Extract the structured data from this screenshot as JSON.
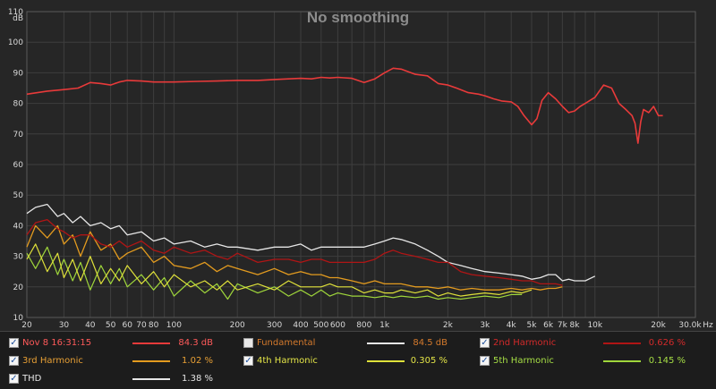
{
  "chart_data": {
    "type": "line",
    "title": "No smoothing",
    "y_unit": "dB",
    "x_unit": "Hz",
    "xscale": "log",
    "xlim": [
      20,
      30000
    ],
    "ylim": [
      10,
      110
    ],
    "grid": true,
    "x_ticks": [
      {
        "v": 20,
        "label": "20"
      },
      {
        "v": 30,
        "label": "30"
      },
      {
        "v": 40,
        "label": "40"
      },
      {
        "v": 50,
        "label": "50"
      },
      {
        "v": 60,
        "label": "60"
      },
      {
        "v": 70,
        "label": "70"
      },
      {
        "v": 80,
        "label": "80"
      },
      {
        "v": 100,
        "label": "100"
      },
      {
        "v": 200,
        "label": "200"
      },
      {
        "v": 300,
        "label": "300"
      },
      {
        "v": 400,
        "label": "400"
      },
      {
        "v": 500,
        "label": "500"
      },
      {
        "v": 600,
        "label": "600"
      },
      {
        "v": 800,
        "label": "800"
      },
      {
        "v": 1000,
        "label": "1k"
      },
      {
        "v": 2000,
        "label": "2k"
      },
      {
        "v": 3000,
        "label": "3k"
      },
      {
        "v": 4000,
        "label": "4k"
      },
      {
        "v": 5000,
        "label": "5k"
      },
      {
        "v": 6000,
        "label": "6k"
      },
      {
        "v": 7000,
        "label": "7k"
      },
      {
        "v": 8000,
        "label": "8k"
      },
      {
        "v": 10000,
        "label": "10k"
      },
      {
        "v": 20000,
        "label": "20k"
      },
      {
        "v": 30000,
        "label": "30.0k"
      }
    ],
    "x_minor": [
      90,
      700,
      900,
      9000
    ],
    "y_ticks": [
      10,
      20,
      30,
      40,
      50,
      60,
      70,
      80,
      90,
      100,
      110
    ],
    "series": [
      {
        "name": "Nov 8 16:31:15",
        "color": "#e83a3a",
        "width": 1.6,
        "x": [
          20,
          25,
          30,
          35,
          40,
          45,
          50,
          55,
          60,
          70,
          80,
          100,
          130,
          160,
          200,
          250,
          300,
          350,
          400,
          450,
          500,
          550,
          600,
          700,
          800,
          900,
          1000,
          1100,
          1200,
          1400,
          1600,
          1800,
          2000,
          2200,
          2500,
          2800,
          3000,
          3300,
          3600,
          4000,
          4300,
          4600,
          5000,
          5300,
          5600,
          6000,
          6500,
          7000,
          7500,
          8000,
          8500,
          9000,
          10000,
          11000,
          12000,
          13000,
          14000,
          15000,
          15500,
          16000,
          16500,
          17000,
          18000,
          19000,
          20000,
          21000
        ],
        "y": [
          83,
          84,
          84.5,
          85,
          86.8,
          86.5,
          86,
          87,
          87.5,
          87.3,
          87,
          87,
          87.2,
          87.3,
          87.5,
          87.5,
          87.8,
          88,
          88.2,
          88,
          88.5,
          88.3,
          88.5,
          88.2,
          86.8,
          88,
          90,
          91.5,
          91.2,
          89.5,
          89,
          86.5,
          86,
          85,
          83.5,
          83,
          82.5,
          81.5,
          80.8,
          80.5,
          79,
          76,
          73,
          75,
          81,
          83.5,
          81.5,
          79,
          77,
          77.5,
          79,
          80,
          82,
          86,
          85,
          80,
          78,
          76,
          73.5,
          67,
          74,
          78,
          77,
          79,
          76,
          76
        ]
      },
      {
        "name": "2nd Harmonic",
        "color": "#b01515",
        "width": 1.3,
        "x": [
          20,
          22,
          25,
          28,
          30,
          33,
          36,
          40,
          45,
          50,
          55,
          60,
          70,
          80,
          90,
          100,
          120,
          140,
          160,
          180,
          200,
          250,
          300,
          350,
          400,
          450,
          500,
          550,
          600,
          700,
          800,
          900,
          1000,
          1100,
          1200,
          1400,
          1600,
          1800,
          2000,
          2300,
          2600,
          3000,
          3500,
          4000,
          4500,
          5000,
          5500,
          6000,
          6500,
          7000
        ],
        "y": [
          37,
          41,
          42,
          39,
          38,
          36,
          37,
          37,
          34,
          33,
          35,
          33,
          35,
          32,
          31,
          33,
          31,
          32,
          30,
          29,
          31,
          28,
          29,
          29,
          28,
          29,
          29,
          28,
          28,
          28,
          28,
          29,
          31,
          32,
          31,
          30,
          29,
          28,
          28,
          25,
          24,
          23.5,
          23,
          22.5,
          22,
          22,
          21,
          21,
          21,
          20.5
        ]
      },
      {
        "name": "3rd Harmonic",
        "color": "#e39b1f",
        "width": 1.3,
        "x": [
          20,
          22,
          25,
          28,
          30,
          33,
          36,
          40,
          45,
          50,
          55,
          60,
          70,
          80,
          90,
          100,
          120,
          140,
          160,
          180,
          200,
          250,
          300,
          350,
          400,
          450,
          500,
          550,
          600,
          700,
          800,
          900,
          1000,
          1100,
          1200,
          1400,
          1600,
          1800,
          2000,
          2300,
          2600,
          3000,
          3500,
          4000,
          4500,
          5000,
          5500,
          6000,
          6500,
          7000
        ],
        "y": [
          33,
          40,
          36,
          40,
          34,
          37,
          30,
          38,
          32,
          34,
          29,
          31,
          33,
          28,
          30,
          27,
          26,
          28,
          25,
          27,
          26,
          24,
          26,
          24,
          25,
          24,
          24,
          23,
          23,
          22,
          21,
          22,
          21,
          21,
          21,
          20,
          20,
          19.5,
          20,
          19,
          19.5,
          19,
          19,
          19.5,
          19,
          19.5,
          19,
          19.5,
          19.5,
          20
        ]
      },
      {
        "name": "4th Harmonic",
        "color": "#dfe13a",
        "width": 1.2,
        "x": [
          20,
          22,
          25,
          28,
          30,
          33,
          36,
          40,
          45,
          50,
          55,
          60,
          70,
          80,
          90,
          100,
          120,
          140,
          160,
          180,
          200,
          250,
          300,
          350,
          400,
          450,
          500,
          550,
          600,
          700,
          800,
          900,
          1000,
          1100,
          1200,
          1400,
          1600,
          1800,
          2000,
          2300,
          2600,
          3000,
          3500,
          4000,
          4500,
          5000
        ],
        "y": [
          29,
          34,
          25,
          31,
          23,
          29,
          22,
          30,
          21,
          26,
          22,
          27,
          21,
          25,
          20,
          24,
          20,
          22,
          19,
          22,
          19,
          21,
          19,
          22,
          20,
          20,
          20,
          21,
          20,
          20,
          18,
          19,
          18,
          18,
          19,
          18,
          19,
          17,
          18,
          17,
          17.5,
          18,
          17.5,
          18.5,
          18,
          19
        ]
      },
      {
        "name": "5th Harmonic",
        "color": "#9fd63b",
        "width": 1.2,
        "x": [
          20,
          22,
          25,
          28,
          30,
          33,
          36,
          40,
          45,
          50,
          55,
          60,
          70,
          80,
          90,
          100,
          120,
          140,
          160,
          180,
          200,
          250,
          300,
          350,
          400,
          450,
          500,
          550,
          600,
          700,
          800,
          900,
          1000,
          1100,
          1200,
          1400,
          1600,
          1800,
          2000,
          2300,
          2600,
          3000,
          3500,
          4000,
          4500
        ],
        "y": [
          31,
          26,
          33,
          24,
          29,
          22,
          28,
          19,
          27,
          21,
          26,
          20,
          24,
          19,
          23,
          17,
          22,
          18,
          21,
          16,
          21,
          18,
          20,
          17,
          19,
          17,
          19,
          17,
          18,
          17,
          17,
          16.5,
          17,
          16.5,
          17,
          16.5,
          17,
          16,
          16.5,
          16,
          16.5,
          17,
          16.5,
          17.5,
          17.5
        ]
      },
      {
        "name": "THD",
        "color": "#e6e6e6",
        "width": 1.3,
        "x": [
          20,
          22,
          25,
          28,
          30,
          33,
          36,
          40,
          45,
          50,
          55,
          60,
          70,
          80,
          90,
          100,
          120,
          140,
          160,
          180,
          200,
          250,
          300,
          350,
          400,
          450,
          500,
          550,
          600,
          700,
          800,
          900,
          1000,
          1100,
          1200,
          1400,
          1600,
          1800,
          2000,
          2300,
          2600,
          3000,
          3500,
          4000,
          4500,
          5000,
          5500,
          6000,
          6500,
          7000,
          7500,
          8000,
          9000,
          10000
        ],
        "y": [
          44,
          46,
          47,
          43,
          44,
          41,
          43,
          40,
          41,
          39,
          40,
          37,
          38,
          35,
          36,
          34,
          35,
          33,
          34,
          33,
          33,
          32,
          33,
          33,
          34,
          32,
          33,
          33,
          33,
          33,
          33,
          34,
          35,
          36,
          35.5,
          34,
          32,
          30,
          28,
          27,
          26,
          25,
          24.5,
          24,
          23.5,
          22.5,
          23,
          24,
          24,
          22,
          22.5,
          22,
          22,
          23.5
        ]
      }
    ]
  },
  "legend": [
    {
      "checked": true,
      "name": "Nov 8 16:31:15",
      "value": "84.3 dB",
      "color": "#e83a3a",
      "name_color": "#ff5a5a",
      "val_color": "#ff5a5a"
    },
    {
      "checked": false,
      "name": "Fundamental",
      "value": "84.5 dB",
      "color": "#e8e8e8",
      "name_color": "#d57a2c",
      "val_color": "#d57a2c"
    },
    {
      "checked": true,
      "name": "2nd Harmonic",
      "value": "0.626 %",
      "color": "#b01515",
      "name_color": "#d22a2a",
      "val_color": "#d22a2a"
    },
    {
      "checked": true,
      "name": "3rd Harmonic",
      "value": "1.02 %",
      "color": "#e39b1f",
      "name_color": "#e8a035",
      "val_color": "#e8a035"
    },
    {
      "checked": true,
      "name": "4th Harmonic",
      "value": "0.305 %",
      "color": "#dfe13a",
      "name_color": "#e4e547",
      "val_color": "#e4e547"
    },
    {
      "checked": true,
      "name": "5th Harmonic",
      "value": "0.145 %",
      "color": "#9fd63b",
      "name_color": "#a6de45",
      "val_color": "#a6de45"
    },
    {
      "checked": true,
      "name": "THD",
      "value": "1.38 %",
      "color": "#e6e6e6",
      "name_color": "#e6e6e6",
      "val_color": "#e6e6e6"
    }
  ]
}
